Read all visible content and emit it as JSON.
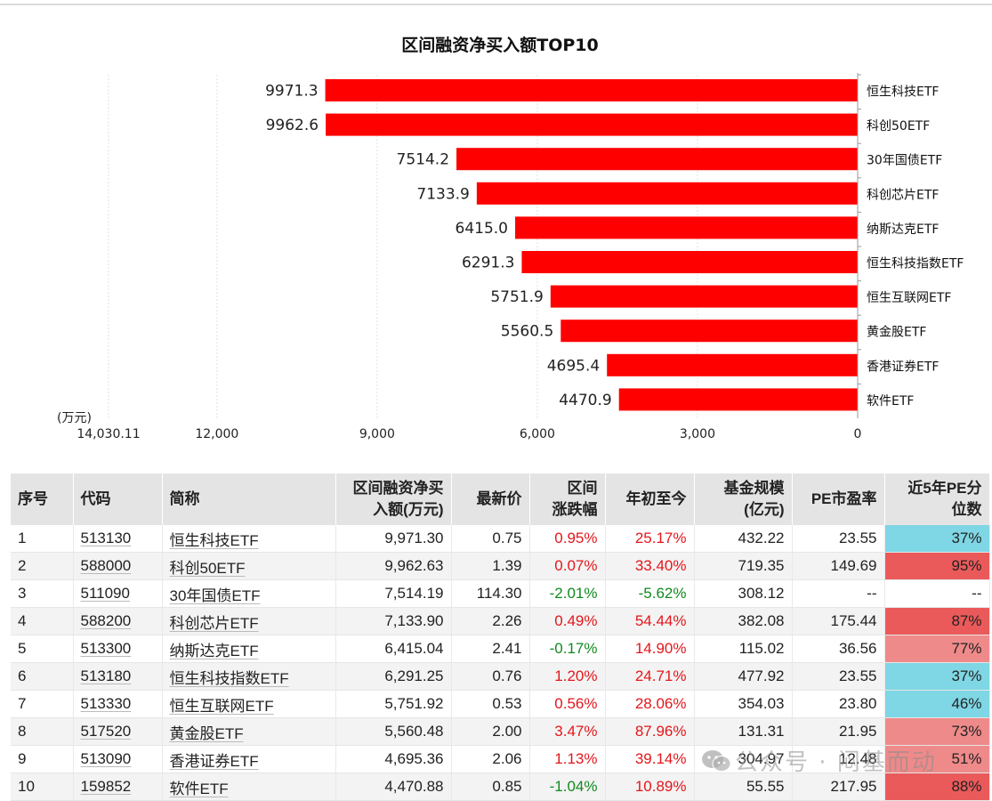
{
  "colors": {
    "bar": "#ff0000",
    "pct_low": "#7fd6e4",
    "pct_high": "#ea5a5a",
    "pct_mid": "#ef8a8a",
    "up": "#e4161b",
    "down": "#118a1e"
  },
  "chart_data": {
    "type": "bar",
    "orientation": "horizontal",
    "title": "区间融资净买入额TOP10",
    "unit_label": "(万元)",
    "categories": [
      "恒生科技ETF",
      "科创50ETF",
      "30年国债ETF",
      "科创芯片ETF",
      "纳斯达克ETF",
      "恒生科技指数ETF",
      "恒生互联网ETF",
      "黄金股ETF",
      "香港证券ETF",
      "软件ETF"
    ],
    "values": [
      9971.3,
      9962.6,
      7514.2,
      7133.9,
      6415.0,
      6291.3,
      5751.9,
      5560.5,
      4695.4,
      4470.9
    ],
    "value_labels": [
      "9971.3",
      "9962.6",
      "7514.2",
      "7133.9",
      "6415.0",
      "6291.3",
      "5751.9",
      "5560.5",
      "4695.4",
      "4470.9"
    ],
    "xlim": [
      0,
      14030.11
    ],
    "x_ticks": [
      14030.11,
      12000,
      9000,
      6000,
      3000,
      0
    ],
    "x_tick_labels": [
      "14,030.11",
      "12,000",
      "9,000",
      "6,000",
      "3,000",
      "0"
    ],
    "x_reversed": true,
    "category_axis": "right",
    "grid": true
  },
  "table": {
    "headers": [
      {
        "l1": "序号",
        "l2": ""
      },
      {
        "l1": "代码",
        "l2": ""
      },
      {
        "l1": "简称",
        "l2": ""
      },
      {
        "l1": "区间融资净买",
        "l2": "入额(万元)"
      },
      {
        "l1": "最新价",
        "l2": ""
      },
      {
        "l1": "区间",
        "l2": "涨跌幅"
      },
      {
        "l1": "年初至今",
        "l2": ""
      },
      {
        "l1": "基金规模",
        "l2": "(亿元)"
      },
      {
        "l1": "PE市盈率",
        "l2": ""
      },
      {
        "l1": "近5年PE分",
        "l2": "位数"
      }
    ],
    "rows": [
      {
        "no": "1",
        "code": "513130",
        "name": "恒生科技ETF",
        "net_buy": "9,971.30",
        "price": "0.75",
        "chg": "0.95%",
        "ytd": "25.17%",
        "scale": "432.22",
        "pe": "23.55",
        "pct": "37%",
        "chg_dir": "up",
        "ytd_dir": "up",
        "pct_level": "low"
      },
      {
        "no": "2",
        "code": "588000",
        "name": "科创50ETF",
        "net_buy": "9,962.63",
        "price": "1.39",
        "chg": "0.07%",
        "ytd": "33.40%",
        "scale": "719.35",
        "pe": "149.69",
        "pct": "95%",
        "chg_dir": "up",
        "ytd_dir": "up",
        "pct_level": "high"
      },
      {
        "no": "3",
        "code": "511090",
        "name": "30年国债ETF",
        "net_buy": "7,514.19",
        "price": "114.30",
        "chg": "-2.01%",
        "ytd": "-5.62%",
        "scale": "308.12",
        "pe": "--",
        "pct": "--",
        "chg_dir": "down",
        "ytd_dir": "down",
        "pct_level": "none"
      },
      {
        "no": "4",
        "code": "588200",
        "name": "科创芯片ETF",
        "net_buy": "7,133.90",
        "price": "2.26",
        "chg": "0.49%",
        "ytd": "54.44%",
        "scale": "382.08",
        "pe": "175.44",
        "pct": "87%",
        "chg_dir": "up",
        "ytd_dir": "up",
        "pct_level": "high"
      },
      {
        "no": "5",
        "code": "513300",
        "name": "纳斯达克ETF",
        "net_buy": "6,415.04",
        "price": "2.41",
        "chg": "-0.17%",
        "ytd": "14.90%",
        "scale": "115.02",
        "pe": "36.56",
        "pct": "77%",
        "chg_dir": "down",
        "ytd_dir": "up",
        "pct_level": "mid"
      },
      {
        "no": "6",
        "code": "513180",
        "name": "恒生科技指数ETF",
        "net_buy": "6,291.25",
        "price": "0.76",
        "chg": "1.20%",
        "ytd": "24.71%",
        "scale": "477.92",
        "pe": "23.55",
        "pct": "37%",
        "chg_dir": "up",
        "ytd_dir": "up",
        "pct_level": "low"
      },
      {
        "no": "7",
        "code": "513330",
        "name": "恒生互联网ETF",
        "net_buy": "5,751.92",
        "price": "0.53",
        "chg": "0.56%",
        "ytd": "28.06%",
        "scale": "354.03",
        "pe": "23.80",
        "pct": "46%",
        "chg_dir": "up",
        "ytd_dir": "up",
        "pct_level": "low"
      },
      {
        "no": "8",
        "code": "517520",
        "name": "黄金股ETF",
        "net_buy": "5,560.48",
        "price": "2.00",
        "chg": "3.47%",
        "ytd": "87.96%",
        "scale": "131.31",
        "pe": "21.95",
        "pct": "73%",
        "chg_dir": "up",
        "ytd_dir": "up",
        "pct_level": "mid"
      },
      {
        "no": "9",
        "code": "513090",
        "name": "香港证券ETF",
        "net_buy": "4,695.36",
        "price": "2.06",
        "chg": "1.13%",
        "ytd": "39.14%",
        "scale": "304.97",
        "pe": "12.48",
        "pct": "51%",
        "chg_dir": "up",
        "ytd_dir": "up",
        "pct_level": "mid"
      },
      {
        "no": "10",
        "code": "159852",
        "name": "软件ETF",
        "net_buy": "4,470.88",
        "price": "0.85",
        "chg": "-1.04%",
        "ytd": "10.89%",
        "scale": "55.55",
        "pe": "217.95",
        "pct": "88%",
        "chg_dir": "down",
        "ytd_dir": "up",
        "pct_level": "high"
      }
    ]
  },
  "watermark": {
    "text": "公众号 · 闷基而动",
    "icon": "wechat-icon"
  }
}
